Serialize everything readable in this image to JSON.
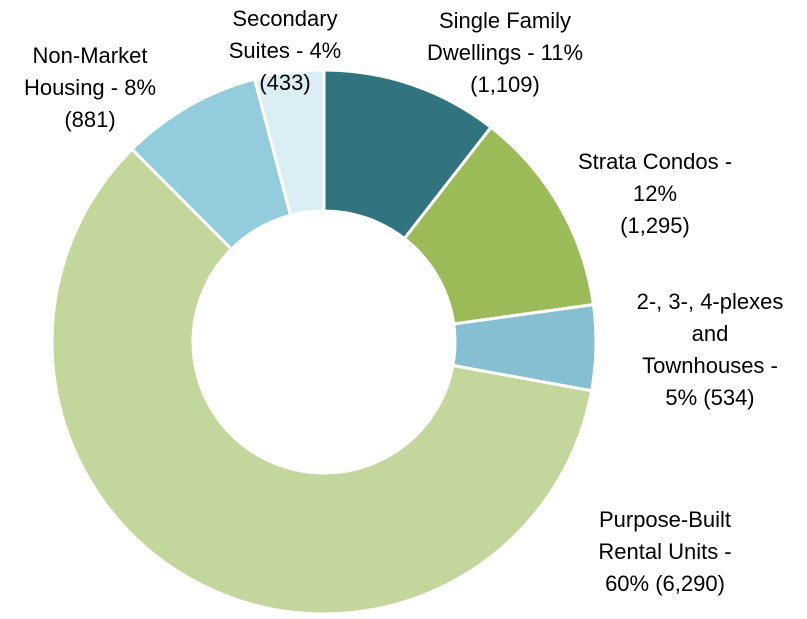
{
  "chart_data": {
    "type": "donut",
    "categories": [
      "Single Family Dwellings",
      "Strata Condos",
      "2-, 3-, 4-plexes and Townhouses",
      "Purpose-Built Rental Units",
      "Non-Market Housing",
      "Secondary Suites"
    ],
    "values": [
      1109,
      1295,
      534,
      6290,
      881,
      433
    ],
    "labels": [
      [
        "Single Family",
        "Dwellings - 11%",
        "(1,109)"
      ],
      [
        "Strata Condos -",
        "12%",
        "(1,295)"
      ],
      [
        "2-, 3-, 4-plexes",
        "and",
        "Townhouses -",
        "5% (534)"
      ],
      [
        "Purpose-Built",
        "Rental Units -",
        "60% (6,290)"
      ],
      [
        "Non-Market",
        "Housing - 8%",
        "(881)"
      ],
      [
        "Secondary",
        "Suites - 4%",
        "(433)"
      ]
    ],
    "colors": [
      "#31737f",
      "#9bbb59",
      "#86bfd1",
      "#c3d69b",
      "#93cddd",
      "#dbeef4"
    ]
  }
}
